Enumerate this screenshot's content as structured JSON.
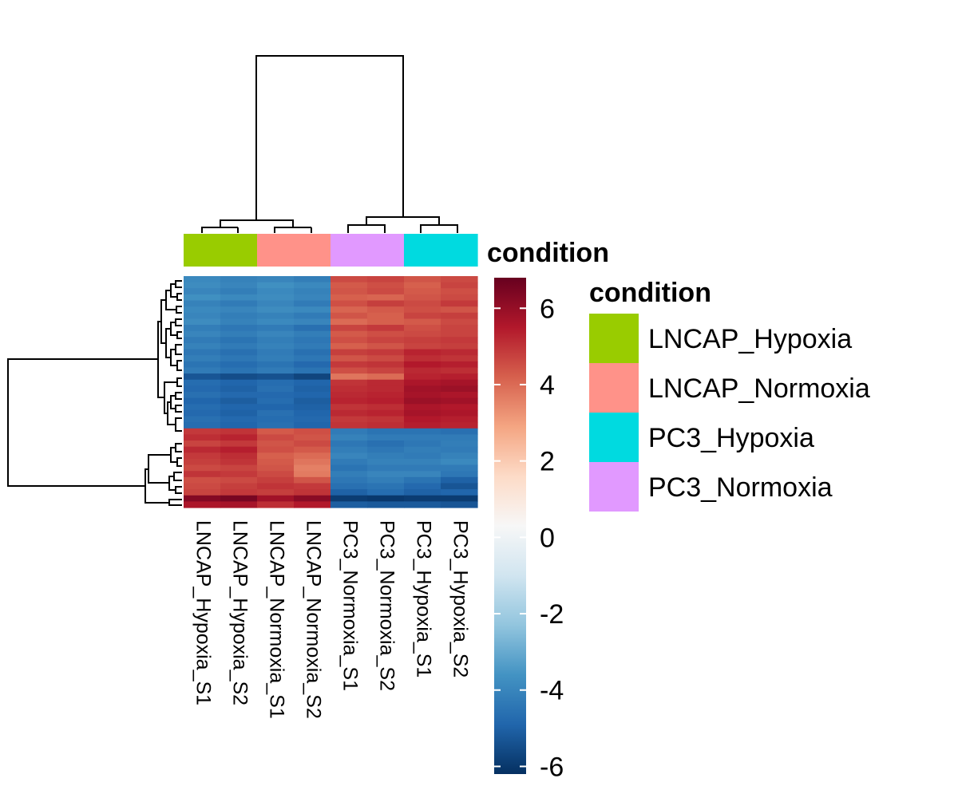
{
  "chart_data": {
    "type": "heatmap",
    "title": "",
    "columns": [
      "LNCAP_Hypoxia_S1",
      "LNCAP_Hypoxia_S2",
      "LNCAP_Normoxia_S1",
      "LNCAP_Normoxia_S2",
      "PC3_Normoxia_S1",
      "PC3_Normoxia_S2",
      "PC3_Hypoxia_S1",
      "PC3_Hypoxia_S2"
    ],
    "column_annotation": {
      "label": "condition",
      "values": [
        "LNCAP_Hypoxia",
        "LNCAP_Hypoxia",
        "LNCAP_Normoxia",
        "LNCAP_Normoxia",
        "PC3_Normoxia",
        "PC3_Normoxia",
        "PC3_Hypoxia",
        "PC3_Hypoxia"
      ]
    },
    "legend": {
      "title": "condition",
      "entries": [
        {
          "label": "LNCAP_Hypoxia",
          "color": "#99cc00"
        },
        {
          "label": "LNCAP_Normoxia",
          "color": "#ff9289"
        },
        {
          "label": "PC3_Hypoxia",
          "color": "#00dae0"
        },
        {
          "label": "PC3_Normoxia",
          "color": "#e199ff"
        }
      ],
      "placement": "right"
    },
    "color_scale": {
      "min": -6.2,
      "max": 6.8,
      "ticks": [
        6,
        4,
        2,
        0,
        -2,
        -4,
        -6
      ],
      "colors": [
        "#053061",
        "#2166ac",
        "#4393c3",
        "#92c5de",
        "#d1e5f0",
        "#f7f7f7",
        "#fddbc7",
        "#f4a582",
        "#d6604d",
        "#b2182b",
        "#67001f"
      ]
    },
    "values": [
      [
        -3.9,
        -4.1,
        -4.0,
        -4.2,
        4.6,
        4.7,
        4.4,
        4.6
      ],
      [
        -3.8,
        -4.0,
        -3.7,
        -3.9,
        4.3,
        4.5,
        4.2,
        4.7
      ],
      [
        -4.0,
        -4.2,
        -3.9,
        -4.1,
        4.4,
        4.6,
        4.3,
        4.5
      ],
      [
        -3.7,
        -3.9,
        -3.8,
        -4.0,
        4.2,
        4.1,
        4.4,
        4.6
      ],
      [
        -4.1,
        -4.3,
        -4.0,
        -4.3,
        4.5,
        4.8,
        4.6,
        4.9
      ],
      [
        -3.9,
        -4.0,
        -3.8,
        -3.9,
        4.1,
        4.3,
        4.5,
        4.4
      ],
      [
        -4.0,
        -4.2,
        -4.1,
        -4.3,
        4.4,
        4.2,
        4.7,
        4.8
      ],
      [
        -3.8,
        -4.1,
        -3.9,
        -4.0,
        4.0,
        4.2,
        4.3,
        4.6
      ],
      [
        -4.2,
        -4.4,
        -4.3,
        -4.6,
        4.7,
        4.9,
        4.5,
        4.7
      ],
      [
        -4.0,
        -4.2,
        -4.0,
        -4.2,
        4.3,
        4.5,
        4.6,
        4.7
      ],
      [
        -4.3,
        -4.5,
        -4.2,
        -4.4,
        4.5,
        4.7,
        4.8,
        4.9
      ],
      [
        -4.1,
        -4.3,
        -4.1,
        -4.3,
        4.2,
        4.4,
        4.7,
        4.8
      ],
      [
        -4.4,
        -4.6,
        -4.3,
        -4.6,
        4.8,
        4.9,
        5.3,
        5.2
      ],
      [
        -4.2,
        -4.4,
        -4.2,
        -4.4,
        4.4,
        4.6,
        5.1,
        5.0
      ],
      [
        -4.5,
        -4.7,
        -4.5,
        -4.8,
        4.9,
        5.0,
        5.5,
        5.4
      ],
      [
        -4.3,
        -4.5,
        -4.3,
        -4.5,
        4.5,
        4.7,
        5.2,
        5.1
      ],
      [
        -5.3,
        -5.5,
        -5.4,
        -5.7,
        3.8,
        4.0,
        5.3,
        5.4
      ],
      [
        -4.7,
        -4.9,
        -4.7,
        -4.9,
        5.0,
        5.2,
        5.6,
        5.7
      ],
      [
        -4.8,
        -5.0,
        -4.6,
        -5.0,
        5.1,
        5.2,
        5.8,
        5.9
      ],
      [
        -4.6,
        -4.8,
        -4.8,
        -4.9,
        5.2,
        5.3,
        5.7,
        5.6
      ],
      [
        -4.9,
        -5.1,
        -4.7,
        -5.1,
        5.3,
        5.4,
        5.9,
        5.8
      ],
      [
        -4.7,
        -4.9,
        -4.9,
        -5.0,
        5.0,
        5.1,
        5.6,
        5.5
      ],
      [
        -4.8,
        -5.0,
        -4.6,
        -4.9,
        5.2,
        5.3,
        5.7,
        5.6
      ],
      [
        -4.6,
        -4.8,
        -4.7,
        -4.8,
        4.9,
        5.0,
        5.5,
        5.4
      ],
      [
        -4.7,
        -4.9,
        -4.6,
        -4.9,
        5.0,
        5.1,
        5.4,
        5.3
      ],
      [
        4.9,
        5.0,
        4.3,
        4.5,
        -4.3,
        -4.5,
        -4.5,
        -4.6
      ],
      [
        5.1,
        5.3,
        4.6,
        4.4,
        -4.1,
        -4.3,
        -4.3,
        -4.3
      ],
      [
        4.7,
        4.9,
        4.4,
        4.6,
        -4.4,
        -4.6,
        -4.4,
        -4.2
      ],
      [
        5.2,
        5.4,
        4.5,
        4.3,
        -4.2,
        -4.4,
        -4.2,
        -4.3
      ],
      [
        4.9,
        5.1,
        4.2,
        4.0,
        -4.0,
        -4.2,
        -4.3,
        -4.1
      ],
      [
        4.8,
        5.0,
        4.3,
        3.8,
        -4.3,
        -4.1,
        -4.1,
        -3.9
      ],
      [
        4.6,
        4.7,
        4.4,
        3.6,
        -4.5,
        -4.3,
        -4.3,
        -4.3
      ],
      [
        5.0,
        4.9,
        4.6,
        3.7,
        -4.2,
        -4.0,
        -4.0,
        -4.4
      ],
      [
        4.5,
        4.6,
        4.8,
        4.4,
        -4.4,
        -4.2,
        -4.5,
        -5.0
      ],
      [
        4.6,
        4.8,
        5.0,
        4.9,
        -4.6,
        -4.5,
        -4.8,
        -5.3
      ],
      [
        4.7,
        4.9,
        4.8,
        5.0,
        -5.0,
        -4.7,
        -5.0,
        -4.9
      ],
      [
        6.3,
        6.5,
        5.8,
        6.2,
        -5.9,
        -6.0,
        -5.9,
        -5.9
      ],
      [
        5.6,
        5.7,
        5.1,
        5.5,
        -5.1,
        -5.2,
        -5.2,
        -5.3
      ]
    ]
  }
}
